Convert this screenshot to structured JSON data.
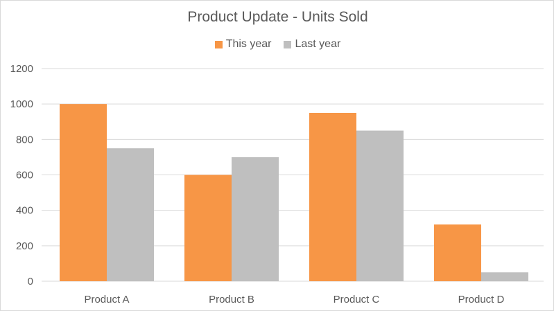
{
  "chart_data": {
    "type": "bar",
    "title": "Product Update - Units Sold",
    "xlabel": "",
    "ylabel": "",
    "categories": [
      "Product A",
      "Product B",
      "Product C",
      "Product D"
    ],
    "series": [
      {
        "name": "This year",
        "values": [
          1000,
          600,
          950,
          320
        ],
        "color": "#f79646"
      },
      {
        "name": "Last year",
        "values": [
          750,
          700,
          850,
          50
        ],
        "color": "#bfbfbf"
      }
    ],
    "ylim": [
      0,
      1200
    ],
    "yticks": [
      "0",
      "200",
      "400",
      "600",
      "800",
      "1000",
      "1200"
    ],
    "grid": true,
    "legend": "top-center"
  }
}
